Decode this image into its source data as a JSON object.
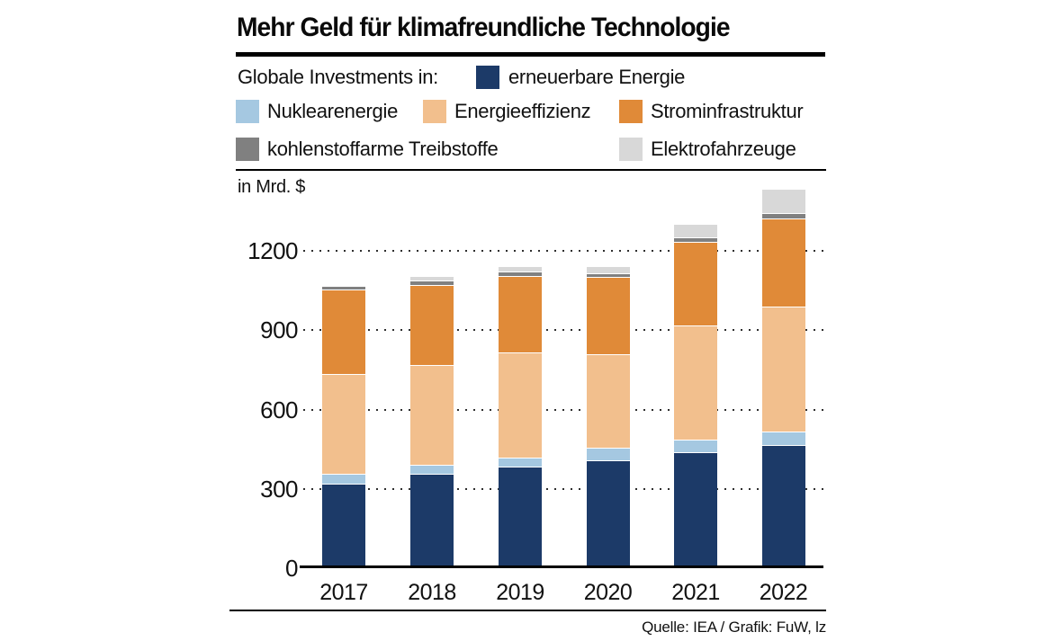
{
  "title": "Mehr Geld für klimafreundliche Technologie",
  "legend": {
    "intro": "Globale Investments in:",
    "items": [
      {
        "label": "erneuerbare Energie",
        "color": "#1c3a68"
      },
      {
        "label": "Nuklearenergie",
        "color": "#a5c8e1"
      },
      {
        "label": "Energieeffizienz",
        "color": "#f2bf8d"
      },
      {
        "label": "Strominfrastruktur",
        "color": "#e08a38"
      },
      {
        "label": "kohlenstoffarme Treibstoffe",
        "color": "#808080"
      },
      {
        "label": "Elektrofahrzeuge",
        "color": "#d8d8d8"
      }
    ]
  },
  "unit_label": "in Mrd. $",
  "source": "Quelle: IEA / Grafik: FuW, lz",
  "chart_data": {
    "type": "bar",
    "stacked": true,
    "title": "Mehr Geld für klimafreundliche Technologie",
    "ylabel": "in Mrd. $",
    "categories": [
      "2017",
      "2018",
      "2019",
      "2020",
      "2021",
      "2022"
    ],
    "series": [
      {
        "name": "erneuerbare Energie",
        "color": "#1c3a68",
        "values": [
          315,
          352,
          382,
          405,
          434,
          462
        ]
      },
      {
        "name": "Nuklearenergie",
        "color": "#a5c8e1",
        "values": [
          37,
          34,
          34,
          46,
          50,
          52
        ]
      },
      {
        "name": "Energieeffizienz",
        "color": "#f2bf8d",
        "values": [
          380,
          380,
          397,
          354,
          431,
          472
        ]
      },
      {
        "name": "Strominfrastruktur",
        "color": "#e08a38",
        "values": [
          320,
          302,
          288,
          294,
          315,
          332
        ]
      },
      {
        "name": "kohlenstoffarme Treibstoffe",
        "color": "#808080",
        "values": [
          12,
          15,
          16,
          11,
          19,
          22
        ]
      },
      {
        "name": "Elektrofahrzeuge",
        "color": "#d8d8d8",
        "values": [
          5,
          17,
          22,
          28,
          51,
          91
        ]
      }
    ],
    "totals": [
      1069,
      1100,
      1139,
      1138,
      1300,
      1431
    ],
    "yticks": [
      0,
      300,
      600,
      900,
      1200
    ],
    "ylim": [
      0,
      1450
    ],
    "grid": "horizontal-dotted",
    "legend_position": "top"
  }
}
